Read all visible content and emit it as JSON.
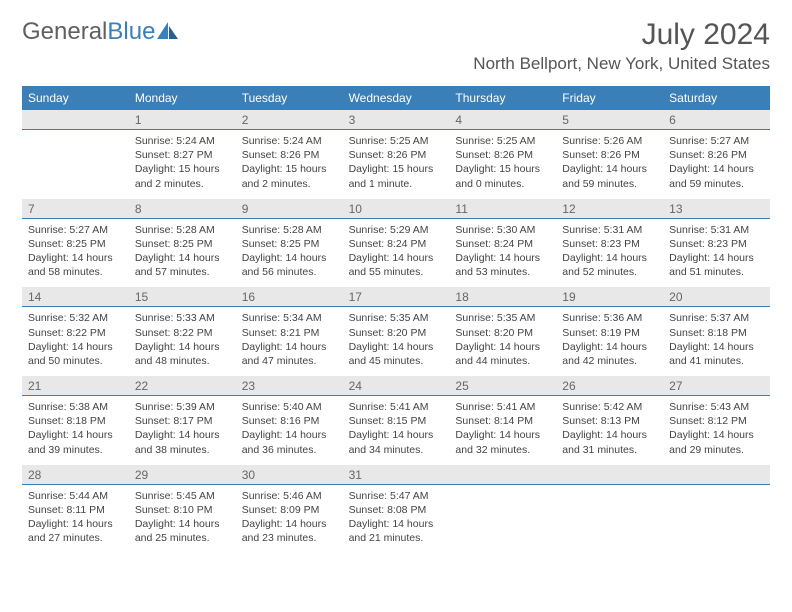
{
  "logo": {
    "text1": "General",
    "text2": "Blue"
  },
  "title": "July 2024",
  "location": "North Bellport, New York, United States",
  "colors": {
    "header_bg": "#3a7fb8",
    "header_text": "#ffffff",
    "num_row_bg": "#e8e8e8",
    "num_row_border": "#3a7fb8",
    "body_text": "#444444",
    "title_text": "#555555"
  },
  "day_names": [
    "Sunday",
    "Monday",
    "Tuesday",
    "Wednesday",
    "Thursday",
    "Friday",
    "Saturday"
  ],
  "weeks": [
    {
      "nums": [
        "",
        "1",
        "2",
        "3",
        "4",
        "5",
        "6"
      ],
      "cells": [
        {},
        {
          "sunrise": "Sunrise: 5:24 AM",
          "sunset": "Sunset: 8:27 PM",
          "daylight": "Daylight: 15 hours and 2 minutes."
        },
        {
          "sunrise": "Sunrise: 5:24 AM",
          "sunset": "Sunset: 8:26 PM",
          "daylight": "Daylight: 15 hours and 2 minutes."
        },
        {
          "sunrise": "Sunrise: 5:25 AM",
          "sunset": "Sunset: 8:26 PM",
          "daylight": "Daylight: 15 hours and 1 minute."
        },
        {
          "sunrise": "Sunrise: 5:25 AM",
          "sunset": "Sunset: 8:26 PM",
          "daylight": "Daylight: 15 hours and 0 minutes."
        },
        {
          "sunrise": "Sunrise: 5:26 AM",
          "sunset": "Sunset: 8:26 PM",
          "daylight": "Daylight: 14 hours and 59 minutes."
        },
        {
          "sunrise": "Sunrise: 5:27 AM",
          "sunset": "Sunset: 8:26 PM",
          "daylight": "Daylight: 14 hours and 59 minutes."
        }
      ]
    },
    {
      "nums": [
        "7",
        "8",
        "9",
        "10",
        "11",
        "12",
        "13"
      ],
      "cells": [
        {
          "sunrise": "Sunrise: 5:27 AM",
          "sunset": "Sunset: 8:25 PM",
          "daylight": "Daylight: 14 hours and 58 minutes."
        },
        {
          "sunrise": "Sunrise: 5:28 AM",
          "sunset": "Sunset: 8:25 PM",
          "daylight": "Daylight: 14 hours and 57 minutes."
        },
        {
          "sunrise": "Sunrise: 5:28 AM",
          "sunset": "Sunset: 8:25 PM",
          "daylight": "Daylight: 14 hours and 56 minutes."
        },
        {
          "sunrise": "Sunrise: 5:29 AM",
          "sunset": "Sunset: 8:24 PM",
          "daylight": "Daylight: 14 hours and 55 minutes."
        },
        {
          "sunrise": "Sunrise: 5:30 AM",
          "sunset": "Sunset: 8:24 PM",
          "daylight": "Daylight: 14 hours and 53 minutes."
        },
        {
          "sunrise": "Sunrise: 5:31 AM",
          "sunset": "Sunset: 8:23 PM",
          "daylight": "Daylight: 14 hours and 52 minutes."
        },
        {
          "sunrise": "Sunrise: 5:31 AM",
          "sunset": "Sunset: 8:23 PM",
          "daylight": "Daylight: 14 hours and 51 minutes."
        }
      ]
    },
    {
      "nums": [
        "14",
        "15",
        "16",
        "17",
        "18",
        "19",
        "20"
      ],
      "cells": [
        {
          "sunrise": "Sunrise: 5:32 AM",
          "sunset": "Sunset: 8:22 PM",
          "daylight": "Daylight: 14 hours and 50 minutes."
        },
        {
          "sunrise": "Sunrise: 5:33 AM",
          "sunset": "Sunset: 8:22 PM",
          "daylight": "Daylight: 14 hours and 48 minutes."
        },
        {
          "sunrise": "Sunrise: 5:34 AM",
          "sunset": "Sunset: 8:21 PM",
          "daylight": "Daylight: 14 hours and 47 minutes."
        },
        {
          "sunrise": "Sunrise: 5:35 AM",
          "sunset": "Sunset: 8:20 PM",
          "daylight": "Daylight: 14 hours and 45 minutes."
        },
        {
          "sunrise": "Sunrise: 5:35 AM",
          "sunset": "Sunset: 8:20 PM",
          "daylight": "Daylight: 14 hours and 44 minutes."
        },
        {
          "sunrise": "Sunrise: 5:36 AM",
          "sunset": "Sunset: 8:19 PM",
          "daylight": "Daylight: 14 hours and 42 minutes."
        },
        {
          "sunrise": "Sunrise: 5:37 AM",
          "sunset": "Sunset: 8:18 PM",
          "daylight": "Daylight: 14 hours and 41 minutes."
        }
      ]
    },
    {
      "nums": [
        "21",
        "22",
        "23",
        "24",
        "25",
        "26",
        "27"
      ],
      "cells": [
        {
          "sunrise": "Sunrise: 5:38 AM",
          "sunset": "Sunset: 8:18 PM",
          "daylight": "Daylight: 14 hours and 39 minutes."
        },
        {
          "sunrise": "Sunrise: 5:39 AM",
          "sunset": "Sunset: 8:17 PM",
          "daylight": "Daylight: 14 hours and 38 minutes."
        },
        {
          "sunrise": "Sunrise: 5:40 AM",
          "sunset": "Sunset: 8:16 PM",
          "daylight": "Daylight: 14 hours and 36 minutes."
        },
        {
          "sunrise": "Sunrise: 5:41 AM",
          "sunset": "Sunset: 8:15 PM",
          "daylight": "Daylight: 14 hours and 34 minutes."
        },
        {
          "sunrise": "Sunrise: 5:41 AM",
          "sunset": "Sunset: 8:14 PM",
          "daylight": "Daylight: 14 hours and 32 minutes."
        },
        {
          "sunrise": "Sunrise: 5:42 AM",
          "sunset": "Sunset: 8:13 PM",
          "daylight": "Daylight: 14 hours and 31 minutes."
        },
        {
          "sunrise": "Sunrise: 5:43 AM",
          "sunset": "Sunset: 8:12 PM",
          "daylight": "Daylight: 14 hours and 29 minutes."
        }
      ]
    },
    {
      "nums": [
        "28",
        "29",
        "30",
        "31",
        "",
        "",
        ""
      ],
      "cells": [
        {
          "sunrise": "Sunrise: 5:44 AM",
          "sunset": "Sunset: 8:11 PM",
          "daylight": "Daylight: 14 hours and 27 minutes."
        },
        {
          "sunrise": "Sunrise: 5:45 AM",
          "sunset": "Sunset: 8:10 PM",
          "daylight": "Daylight: 14 hours and 25 minutes."
        },
        {
          "sunrise": "Sunrise: 5:46 AM",
          "sunset": "Sunset: 8:09 PM",
          "daylight": "Daylight: 14 hours and 23 minutes."
        },
        {
          "sunrise": "Sunrise: 5:47 AM",
          "sunset": "Sunset: 8:08 PM",
          "daylight": "Daylight: 14 hours and 21 minutes."
        },
        {},
        {},
        {}
      ]
    }
  ]
}
